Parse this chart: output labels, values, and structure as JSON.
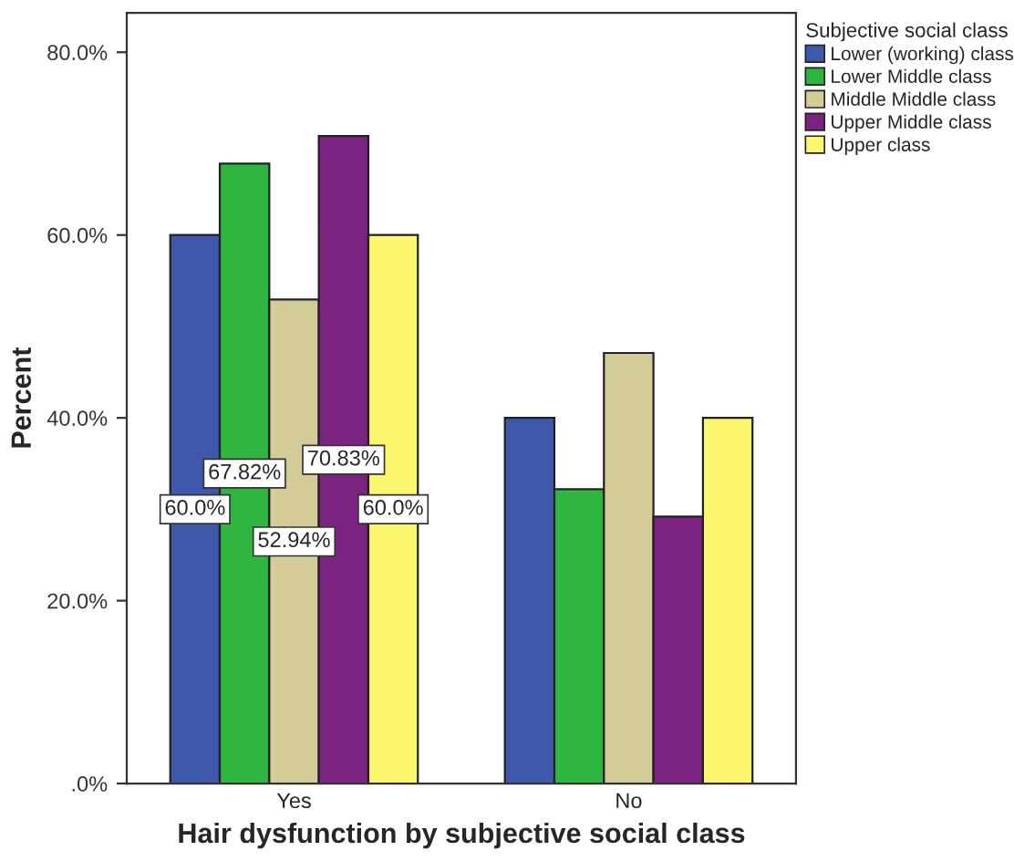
{
  "chart_data": {
    "type": "bar",
    "xlabel": "Hair dysfunction by subjective social class",
    "ylabel": "Percent",
    "legend_title": "Subjective social class",
    "legend": "top right",
    "grid": false,
    "categories": [
      "Yes",
      "No"
    ],
    "series": [
      {
        "name": "Lower (working) class",
        "color": "#3e58ac",
        "values": [
          60.0,
          40.0
        ],
        "value_labels": [
          "60.0%",
          null
        ]
      },
      {
        "name": "Lower Middle class",
        "color": "#2fb641",
        "values": [
          67.82,
          32.2
        ],
        "value_labels": [
          "67.82%",
          null
        ]
      },
      {
        "name": "Middle Middle class",
        "color": "#d3cc99",
        "values": [
          52.94,
          47.1
        ],
        "value_labels": [
          "52.94%",
          null
        ]
      },
      {
        "name": "Upper Middle class",
        "color": "#7c2281",
        "values": [
          70.83,
          29.2
        ],
        "value_labels": [
          "70.83%",
          null
        ]
      },
      {
        "name": "Upper class",
        "color": "#fbf86f",
        "values": [
          60.0,
          40.0
        ],
        "value_labels": [
          "60.0%",
          null
        ]
      }
    ],
    "ylim": [
      0,
      84.3
    ],
    "yticks": [
      {
        "value": 0,
        "label": ".0%"
      },
      {
        "value": 20,
        "label": "20.0%"
      },
      {
        "value": 40,
        "label": "40.0%"
      },
      {
        "value": 60,
        "label": "60.0%"
      },
      {
        "value": 80,
        "label": "80.0%"
      }
    ]
  }
}
